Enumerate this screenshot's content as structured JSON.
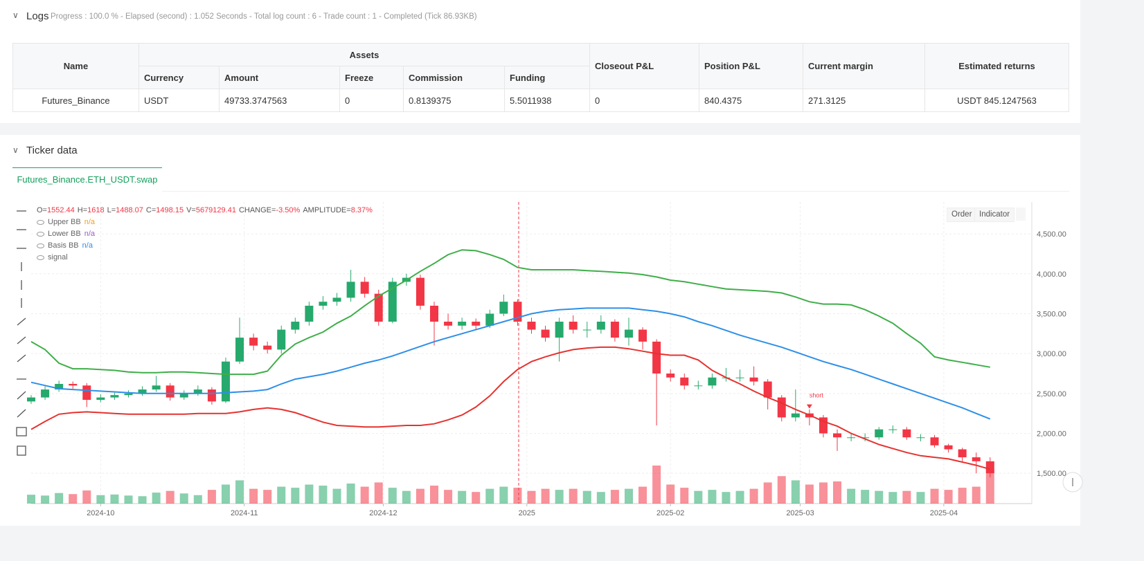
{
  "logs": {
    "title": "Logs",
    "status": "Progress : 100.0 % - Elapsed (second) : 1.052  Seconds - Total log count : 6 - Trade count : 1 - Completed (Tick 86.93KB)",
    "table": {
      "group_header": "Assets",
      "headers": [
        "Name",
        "Currency",
        "Amount",
        "Freeze",
        "Commission",
        "Funding",
        "Closeout P&L",
        "Position P&L",
        "Current margin",
        "Estimated returns"
      ],
      "rows": [
        [
          "Futures_Binance",
          "USDT",
          "49733.3747563",
          "0",
          "0.8139375",
          "5.5011938",
          "0",
          "840.4375",
          "271.3125",
          "USDT 845.1247563"
        ]
      ]
    }
  },
  "ticker": {
    "title": "Ticker data",
    "tab": "Futures_Binance.ETH_USDT.swap",
    "buttons": [
      "Order",
      "Indicator"
    ]
  },
  "chart_data": {
    "type": "candlestick",
    "info": [
      {
        "label": "O=",
        "value": "1552.44"
      },
      {
        "label": "H=",
        "value": "1618"
      },
      {
        "label": "L=",
        "value": "1488.07"
      },
      {
        "label": "C=",
        "value": "1498.15"
      },
      {
        "label": "V=",
        "value": "5679129.41"
      },
      {
        "label": "CHANGE=",
        "value": "-3.50%"
      },
      {
        "label": "AMPLITUDE=",
        "value": "8.37%"
      }
    ],
    "x": [
      0,
      3,
      6,
      9,
      12,
      15,
      18,
      21,
      24,
      27,
      30,
      33,
      36,
      39,
      42,
      45,
      48,
      51,
      54,
      57,
      60,
      63,
      66,
      69,
      72,
      75,
      78,
      81,
      84,
      87,
      90,
      93,
      96,
      99,
      102,
      105,
      108,
      111,
      114,
      117,
      120,
      123,
      126,
      129,
      132,
      135,
      138,
      141,
      144,
      147,
      150,
      153,
      156,
      159,
      162,
      165,
      168,
      171,
      174,
      177,
      180,
      183,
      186,
      189,
      192,
      195,
      198,
      201,
      204,
      207
    ],
    "open": [
      2400,
      2450,
      2550,
      2620,
      2600,
      2420,
      2450,
      2480,
      2500,
      2550,
      2600,
      2450,
      2500,
      2550,
      2400,
      2900,
      3200,
      3100,
      3050,
      3300,
      3400,
      3600,
      3650,
      3700,
      3900,
      3750,
      3400,
      3900,
      3950,
      3600,
      3400,
      3350,
      3400,
      3350,
      3500,
      3650,
      3400,
      3300,
      3200,
      3400,
      3300,
      3300,
      3400,
      3200,
      3300,
      3150,
      2750,
      2700,
      2600,
      2600,
      2700,
      2700,
      2700,
      2650,
      2450,
      2200,
      2250,
      2200,
      2000,
      1950,
      1950,
      1950,
      2050,
      2050,
      1950,
      1950,
      1850,
      1800,
      1700,
      1650
    ],
    "high": [
      2480,
      2590,
      2660,
      2650,
      2630,
      2490,
      2510,
      2540,
      2590,
      2720,
      2630,
      2540,
      2600,
      2580,
      2950,
      3450,
      3250,
      3150,
      3350,
      3450,
      3650,
      3720,
      3760,
      4050,
      3960,
      3800,
      3950,
      4000,
      3990,
      3650,
      3500,
      3450,
      3440,
      3550,
      3740,
      3680,
      3450,
      3350,
      3450,
      3480,
      3400,
      3480,
      3430,
      3450,
      3330,
      3180,
      2800,
      2750,
      2660,
      2750,
      2820,
      2800,
      2840,
      2680,
      2480,
      2550,
      2300,
      2230,
      2050,
      2000,
      2000,
      2080,
      2100,
      2080,
      1990,
      1980,
      1870,
      1820,
      1760,
      1700
    ],
    "low": [
      2370,
      2420,
      2520,
      2560,
      2330,
      2390,
      2420,
      2450,
      2470,
      2520,
      2410,
      2420,
      2470,
      2360,
      2380,
      2870,
      3040,
      3000,
      3000,
      3250,
      3350,
      3550,
      3600,
      3650,
      3700,
      3350,
      3380,
      3850,
      3550,
      3100,
      3300,
      3300,
      3300,
      3320,
      3470,
      3350,
      3250,
      3150,
      2900,
      3250,
      3200,
      3250,
      3150,
      3100,
      3050,
      2100,
      2650,
      2550,
      2550,
      2560,
      2650,
      2650,
      2600,
      2300,
      2150,
      2150,
      2100,
      1950,
      1780,
      1900,
      1900,
      1920,
      2000,
      1920,
      1900,
      1820,
      1760,
      1650,
      1500,
      1450
    ],
    "close": [
      2450,
      2550,
      2620,
      2600,
      2420,
      2450,
      2480,
      2500,
      2550,
      2600,
      2450,
      2500,
      2550,
      2400,
      2900,
      3200,
      3100,
      3050,
      3300,
      3400,
      3600,
      3650,
      3700,
      3900,
      3750,
      3400,
      3900,
      3950,
      3600,
      3400,
      3350,
      3400,
      3350,
      3500,
      3650,
      3400,
      3300,
      3200,
      3400,
      3300,
      3300,
      3400,
      3200,
      3300,
      3150,
      2750,
      2700,
      2600,
      2600,
      2700,
      2700,
      2700,
      2650,
      2450,
      2200,
      2250,
      2200,
      2000,
      1950,
      1950,
      1950,
      2050,
      2050,
      1950,
      1950,
      1850,
      1800,
      1700,
      1650,
      1500
    ],
    "volume": [
      420,
      380,
      500,
      450,
      620,
      400,
      430,
      380,
      350,
      520,
      600,
      480,
      400,
      650,
      900,
      1100,
      700,
      650,
      800,
      750,
      900,
      850,
      700,
      950,
      800,
      1000,
      750,
      600,
      700,
      850,
      650,
      600,
      550,
      700,
      800,
      750,
      600,
      700,
      650,
      700,
      600,
      550,
      650,
      700,
      800,
      1800,
      900,
      750,
      600,
      650,
      550,
      600,
      700,
      1000,
      1300,
      1100,
      900,
      1000,
      1050,
      700,
      650,
      600,
      550,
      600,
      550,
      700,
      650,
      750,
      800,
      1600
    ],
    "up_color": "#26a96c",
    "down_color": "#f23645",
    "series": [
      {
        "name": "Upper BB",
        "color": "#3fae49",
        "legend_value": "n/a",
        "legend_color": "#f0a020",
        "values": [
          3150,
          3050,
          2880,
          2810,
          2810,
          2800,
          2790,
          2770,
          2760,
          2760,
          2770,
          2770,
          2760,
          2750,
          2740,
          2740,
          2740,
          2780,
          2980,
          3120,
          3200,
          3270,
          3380,
          3470,
          3600,
          3720,
          3820,
          3920,
          4030,
          4130,
          4240,
          4300,
          4290,
          4240,
          4180,
          4080,
          4050,
          4050,
          4050,
          4050,
          4040,
          4030,
          4020,
          4010,
          3990,
          3960,
          3920,
          3900,
          3870,
          3840,
          3810,
          3800,
          3790,
          3780,
          3760,
          3710,
          3650,
          3620,
          3620,
          3610,
          3550,
          3470,
          3380,
          3250,
          3130,
          2960,
          2920,
          2890,
          2860,
          2830
        ]
      },
      {
        "name": "Lower BB",
        "color": "#e5322f",
        "legend_value": "n/a",
        "legend_color": "#9c5bd6",
        "values": [
          2050,
          2150,
          2240,
          2260,
          2270,
          2260,
          2250,
          2240,
          2240,
          2240,
          2240,
          2240,
          2250,
          2250,
          2250,
          2270,
          2300,
          2320,
          2300,
          2260,
          2200,
          2140,
          2100,
          2090,
          2080,
          2080,
          2090,
          2100,
          2100,
          2120,
          2170,
          2230,
          2330,
          2470,
          2650,
          2800,
          2900,
          2960,
          3010,
          3050,
          3070,
          3080,
          3080,
          3060,
          3030,
          3000,
          2980,
          2980,
          2920,
          2790,
          2700,
          2620,
          2530,
          2450,
          2380,
          2300,
          2230,
          2150,
          2090,
          2000,
          1930,
          1860,
          1810,
          1760,
          1720,
          1700,
          1680,
          1640,
          1600,
          1550
        ]
      },
      {
        "name": "Basis BB",
        "color": "#2d8fe8",
        "legend_value": "n/a",
        "legend_color": "#2d8fe8",
        "values": [
          2640,
          2600,
          2560,
          2550,
          2540,
          2530,
          2520,
          2510,
          2500,
          2500,
          2500,
          2500,
          2500,
          2500,
          2510,
          2520,
          2530,
          2550,
          2620,
          2680,
          2710,
          2740,
          2780,
          2830,
          2880,
          2920,
          2970,
          3030,
          3090,
          3150,
          3200,
          3250,
          3300,
          3350,
          3400,
          3450,
          3500,
          3530,
          3550,
          3560,
          3570,
          3570,
          3570,
          3570,
          3550,
          3530,
          3500,
          3460,
          3400,
          3350,
          3290,
          3230,
          3180,
          3130,
          3080,
          3020,
          2960,
          2900,
          2850,
          2800,
          2740,
          2680,
          2620,
          2560,
          2500,
          2440,
          2380,
          2320,
          2250,
          2180
        ]
      }
    ],
    "extra_legend": "signal",
    "annotation": {
      "text": "short",
      "x": 168,
      "y": 2450
    },
    "xlim": [
      0,
      216
    ],
    "xticks": [
      {
        "value": 15,
        "label": "2024-10"
      },
      {
        "value": 46,
        "label": "2024-11"
      },
      {
        "value": 76,
        "label": "2024-12"
      },
      {
        "value": 107,
        "label": "2025"
      },
      {
        "value": 138,
        "label": "2025-02"
      },
      {
        "value": 166,
        "label": "2025-03"
      },
      {
        "value": 197,
        "label": "2025-04"
      }
    ],
    "ylim": [
      1120,
      4900
    ],
    "yticks": [
      {
        "value": 1500,
        "label": "1,500.00"
      },
      {
        "value": 2000,
        "label": "2,000.00"
      },
      {
        "value": 2500,
        "label": "2,500.00"
      },
      {
        "value": 3000,
        "label": "3,000.00"
      },
      {
        "value": 3500,
        "label": "3,500.00"
      },
      {
        "value": 4000,
        "label": "4,000.00"
      },
      {
        "value": 4500,
        "label": "4,500.00"
      }
    ],
    "grid": true
  }
}
